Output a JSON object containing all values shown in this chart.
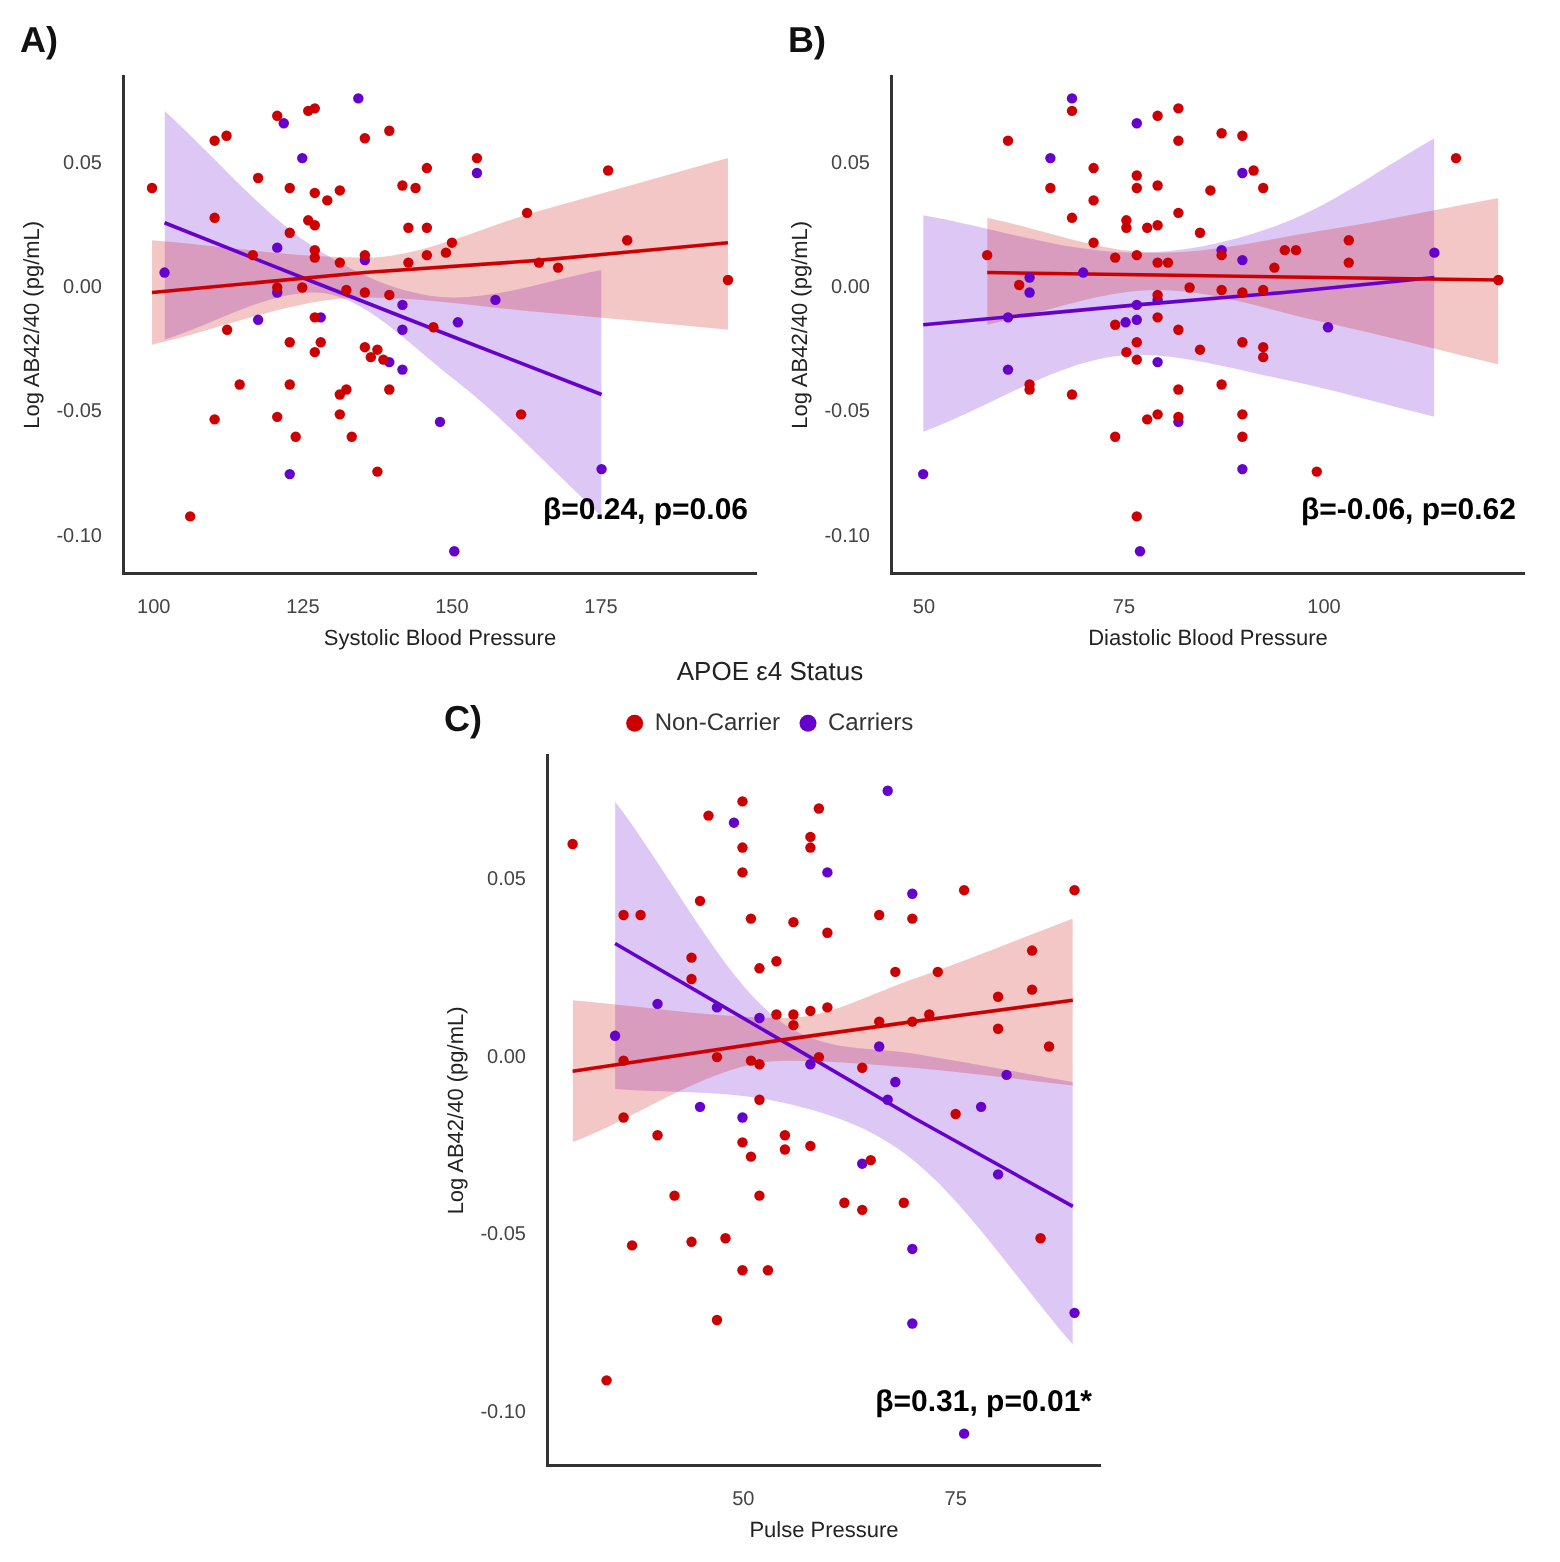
{
  "chart_data": [
    {
      "type": "scatter",
      "title": "A)",
      "xlabel": "Systolic Blood Pressure",
      "ylabel": "Log AB42/40 (pg/mL)",
      "xlim": [
        95,
        201
      ],
      "ylim": [
        -0.115,
        0.085
      ],
      "xticks": [
        100,
        125,
        150,
        175
      ],
      "yticks": [
        {
          "value": -0.1,
          "label": "-0.10"
        },
        {
          "value": -0.05,
          "label": "-0.05"
        },
        {
          "value": 0,
          "label": "0.00"
        },
        {
          "value": 0.05,
          "label": "0.05"
        }
      ],
      "marker": "circle",
      "line_style": "solid",
      "annotations": [
        "β=0.24, p=0.06"
      ],
      "series": [
        {
          "type": "scatter",
          "color": "#cc0000",
          "x": [
            99.7,
            106.1,
            110.2,
            112.2,
            110.2,
            110.2,
            112.3,
            114.4,
            117.5,
            116.6,
            120.7,
            120.7,
            120.7,
            122.8,
            122.8,
            122.8,
            122.8,
            123.8,
            124.9,
            125.9,
            125.9,
            127.0,
            127.0,
            127.0,
            127.0,
            127.0,
            127.0,
            127.0,
            128.0,
            129.1,
            131.2,
            131.2,
            131.2,
            131.2,
            132.3,
            132.3,
            133.2,
            135.4,
            135.4,
            135.4,
            135.4,
            136.4,
            137.5,
            137.5,
            138.5,
            139.5,
            139.5,
            139.5,
            141.7,
            142.7,
            142.7,
            143.9,
            145.8,
            145.8,
            145.8,
            146.9,
            149.0,
            150.0,
            154.2,
            161.6,
            162.6,
            164.6,
            167.8,
            176.2,
            179.4,
            196.3
          ],
          "values": [
            0.04,
            -0.092,
            0.059,
            0.061,
            0.028,
            -0.053,
            -0.017,
            -0.039,
            0.044,
            0.013,
            0.069,
            0.0,
            -0.052,
            0.04,
            0.022,
            -0.022,
            -0.039,
            -0.06,
            0.0,
            0.027,
            0.071,
            0.072,
            0.038,
            0.025,
            0.015,
            0.012,
            -0.012,
            -0.026,
            -0.022,
            0.035,
            0.039,
            0.01,
            -0.043,
            -0.051,
            -0.001,
            -0.041,
            -0.06,
            0.06,
            0.013,
            -0.002,
            -0.024,
            -0.028,
            -0.025,
            -0.074,
            -0.029,
            0.063,
            -0.003,
            -0.041,
            0.041,
            0.024,
            0.01,
            0.04,
            0.048,
            0.024,
            0.013,
            -0.016,
            0.014,
            0.018,
            0.052,
            -0.051,
            0.03,
            0.01,
            0.008,
            0.047,
            0.019,
            0.003
          ]
        },
        {
          "type": "scatter",
          "color": "#6600cc",
          "x": [
            101.8,
            134.3,
            121.8,
            124.9,
            120.7,
            120.7,
            117.5,
            128.0,
            135.4,
            141.7,
            141.7,
            139.5,
            141.7,
            154.2,
            151.0,
            157.3,
            148.0,
            122.8,
            175.1,
            150.4
          ],
          "values": [
            0.006,
            0.076,
            0.066,
            0.052,
            0.016,
            -0.002,
            -0.013,
            -0.012,
            0.011,
            -0.007,
            -0.017,
            -0.03,
            -0.033,
            0.046,
            -0.014,
            -0.005,
            -0.054,
            -0.075,
            -0.073,
            -0.106
          ]
        },
        {
          "type": "line",
          "marker": "none",
          "color": "#cc0000",
          "x": [
            99.7,
            135.4,
            165,
            196.3
          ],
          "values": [
            -0.002,
            0.006,
            0.011,
            0.018
          ],
          "lower": [
            -0.023,
            -0.004,
            -0.01,
            -0.017
          ],
          "upper": [
            0.019,
            0.012,
            0.031,
            0.052
          ]
        },
        {
          "type": "line",
          "marker": "none",
          "color": "#6600cc",
          "x": [
            101.8,
            127,
            150.4,
            175.1
          ],
          "values": [
            0.026,
            0.002,
            -0.02,
            -0.043
          ],
          "lower": [
            -0.021,
            -0.002,
            -0.037,
            -0.092
          ],
          "upper": [
            0.071,
            0.016,
            -0.004,
            0.007
          ]
        }
      ]
    },
    {
      "type": "scatter",
      "title": "B)",
      "xlabel": "Diastolic Blood Pressure",
      "ylabel": "Log AB42/40 (pg/mL)",
      "xlim": [
        46,
        125
      ],
      "ylim": [
        -0.115,
        0.085
      ],
      "xticks": [
        50,
        75,
        100
      ],
      "yticks": [
        {
          "value": -0.1,
          "label": "-0.10"
        },
        {
          "value": -0.05,
          "label": "-0.05"
        },
        {
          "value": 0,
          "label": "0.00"
        },
        {
          "value": 0.05,
          "label": "0.05"
        }
      ],
      "marker": "circle",
      "line_style": "solid",
      "annotations": [
        "β=-0.06, p=0.62"
      ],
      "series": [
        {
          "type": "scatter",
          "color": "#cc0000",
          "x": [
            57.9,
            60.5,
            61.9,
            63.2,
            63.2,
            65.8,
            68.5,
            68.5,
            68.5,
            71.2,
            71.2,
            71.2,
            73.9,
            73.9,
            73.9,
            75.3,
            75.3,
            75.3,
            76.6,
            76.6,
            76.6,
            76.6,
            76.6,
            76.6,
            77.9,
            77.9,
            79.2,
            79.2,
            79.2,
            79.2,
            79.2,
            79.2,
            79.2,
            80.5,
            81.8,
            81.8,
            81.8,
            81.8,
            81.8,
            81.8,
            83.2,
            84.5,
            84.5,
            85.8,
            87.2,
            87.2,
            87.2,
            87.2,
            89.8,
            89.8,
            89.8,
            89.8,
            89.8,
            91.2,
            92.4,
            92.4,
            92.4,
            92.4,
            93.8,
            95.1,
            96.5,
            99.1,
            103.1,
            103.1,
            116.5,
            121.8
          ],
          "values": [
            0.013,
            0.059,
            0.001,
            -0.039,
            -0.041,
            0.04,
            0.071,
            0.028,
            -0.043,
            0.048,
            0.035,
            0.018,
            0.012,
            -0.015,
            -0.06,
            0.027,
            0.024,
            -0.026,
            0.045,
            0.04,
            0.013,
            -0.022,
            -0.029,
            -0.092,
            0.024,
            -0.053,
            0.069,
            0.041,
            0.025,
            0.01,
            -0.003,
            -0.012,
            -0.051,
            0.01,
            0.072,
            0.059,
            0.03,
            -0.017,
            -0.041,
            -0.052,
            0.0,
            0.022,
            -0.025,
            0.039,
            0.062,
            0.013,
            -0.001,
            -0.039,
            0.061,
            -0.002,
            -0.022,
            -0.051,
            -0.06,
            0.047,
            0.04,
            -0.001,
            -0.024,
            -0.028,
            0.008,
            0.015,
            0.015,
            -0.074,
            0.019,
            0.01,
            0.052,
            0.003
          ]
        },
        {
          "type": "scatter",
          "color": "#6600cc",
          "x": [
            49.9,
            60.5,
            60.5,
            63.2,
            63.2,
            65.8,
            68.5,
            69.9,
            75.2,
            76.6,
            76.6,
            76.6,
            79.2,
            79.2,
            81.8,
            87.2,
            89.8,
            89.8,
            89.8,
            100.5,
            113.8,
            77.0
          ],
          "values": [
            -0.075,
            -0.033,
            -0.012,
            0.004,
            -0.002,
            0.052,
            0.076,
            0.006,
            -0.014,
            0.066,
            -0.007,
            -0.013,
            -0.005,
            -0.03,
            -0.054,
            0.015,
            0.011,
            0.046,
            -0.073,
            -0.016,
            0.014,
            -0.106
          ]
        },
        {
          "type": "line",
          "marker": "none",
          "color": "#cc0000",
          "x": [
            57.9,
            79.2,
            100,
            121.8
          ],
          "values": [
            0.006,
            0.005,
            0.004,
            0.003
          ],
          "lower": [
            -0.015,
            -0.001,
            -0.014,
            -0.031
          ],
          "upper": [
            0.028,
            0.014,
            0.023,
            0.036
          ]
        },
        {
          "type": "line",
          "marker": "none",
          "color": "#6600cc",
          "x": [
            49.9,
            76.6,
            95,
            113.8
          ],
          "values": [
            -0.015,
            -0.007,
            -0.002,
            0.004
          ],
          "lower": [
            -0.058,
            -0.027,
            -0.037,
            -0.052
          ],
          "upper": [
            0.029,
            0.014,
            0.026,
            0.06
          ]
        }
      ]
    },
    {
      "type": "scatter",
      "title": "C)",
      "xlabel": "Pulse Pressure",
      "ylabel": "Log AB42/40 (pg/mL)",
      "xlim": [
        27,
        92
      ],
      "ylim": [
        -0.115,
        0.085
      ],
      "xticks": [
        50,
        75
      ],
      "yticks": [
        {
          "value": -0.1,
          "label": "-0.10"
        },
        {
          "value": -0.05,
          "label": "-0.05"
        },
        {
          "value": 0,
          "label": "0.00"
        },
        {
          "value": 0.05,
          "label": "0.05"
        }
      ],
      "marker": "circle",
      "line_style": "solid",
      "annotations": [
        "β=0.31, p=0.01*"
      ],
      "legend": "top",
      "legend_title": "APOE ε4 Status",
      "series": [
        {
          "type": "scatter",
          "name": "Non-Carrier",
          "color": "#cc0000",
          "x": [
            29.9,
            33.9,
            35.9,
            35.9,
            35.9,
            36.9,
            37.9,
            39.9,
            41.9,
            43.9,
            43.9,
            43.9,
            44.9,
            45.9,
            46.9,
            46.9,
            47.9,
            49.9,
            49.9,
            49.9,
            49.9,
            49.9,
            50.9,
            50.9,
            50.9,
            51.9,
            51.9,
            51.9,
            51.9,
            52.9,
            53.9,
            53.9,
            54.9,
            54.9,
            55.9,
            55.9,
            55.9,
            57.9,
            57.9,
            57.9,
            57.9,
            58.9,
            58.9,
            59.9,
            59.9,
            61.9,
            64.0,
            64.0,
            65.0,
            66.0,
            66.0,
            67.9,
            68.9,
            69.9,
            69.9,
            71.9,
            72.9,
            75.0,
            76.0,
            80.0,
            80.0,
            84.0,
            84.0,
            85.0,
            86.0,
            89.0
          ],
          "values": [
            0.06,
            -0.091,
            0.04,
            -0.001,
            -0.017,
            -0.053,
            0.04,
            -0.022,
            -0.039,
            0.028,
            0.022,
            -0.052,
            0.044,
            0.068,
            0.0,
            -0.074,
            -0.051,
            0.072,
            0.059,
            0.052,
            -0.024,
            -0.06,
            0.039,
            -0.001,
            -0.028,
            0.025,
            -0.002,
            -0.012,
            -0.039,
            -0.06,
            0.027,
            0.012,
            -0.022,
            -0.026,
            0.038,
            0.012,
            0.009,
            0.062,
            0.059,
            0.013,
            -0.025,
            0.07,
            0.0,
            0.035,
            0.014,
            -0.041,
            -0.003,
            -0.043,
            -0.029,
            0.04,
            0.01,
            0.024,
            -0.041,
            0.039,
            0.01,
            0.012,
            0.024,
            -0.016,
            0.047,
            0.017,
            0.008,
            0.03,
            0.019,
            -0.051,
            0.003,
            0.047
          ]
        },
        {
          "type": "scatter",
          "name": "Carriers",
          "color": "#6600cc",
          "x": [
            34.9,
            39.9,
            44.9,
            46.9,
            48.9,
            49.9,
            51.9,
            57.9,
            59.9,
            64.0,
            66.0,
            67.0,
            67.0,
            67.9,
            69.9,
            69.9,
            69.9,
            76.0,
            78.0,
            80.0,
            81.0,
            89.0
          ],
          "values": [
            0.006,
            0.015,
            -0.014,
            0.014,
            0.066,
            -0.017,
            0.011,
            -0.002,
            0.052,
            -0.03,
            0.003,
            0.075,
            -0.012,
            -0.007,
            0.046,
            -0.054,
            -0.075,
            -0.106,
            -0.014,
            -0.033,
            -0.005,
            -0.072
          ]
        },
        {
          "type": "line",
          "marker": "none",
          "color": "#cc0000",
          "x": [
            29.9,
            55,
            70,
            88.8
          ],
          "values": [
            -0.004,
            0.005,
            0.01,
            0.016
          ],
          "lower": [
            -0.024,
            -0.001,
            -0.003,
            -0.008
          ],
          "upper": [
            0.016,
            0.011,
            0.022,
            0.039
          ]
        },
        {
          "type": "line",
          "marker": "none",
          "color": "#6600cc",
          "x": [
            34.9,
            55,
            70,
            88.8
          ],
          "values": [
            0.032,
            0.004,
            -0.017,
            -0.042
          ],
          "lower": [
            -0.009,
            -0.013,
            -0.029,
            -0.081
          ],
          "upper": [
            0.072,
            0.009,
            0.001,
            -0.007
          ]
        }
      ]
    }
  ]
}
